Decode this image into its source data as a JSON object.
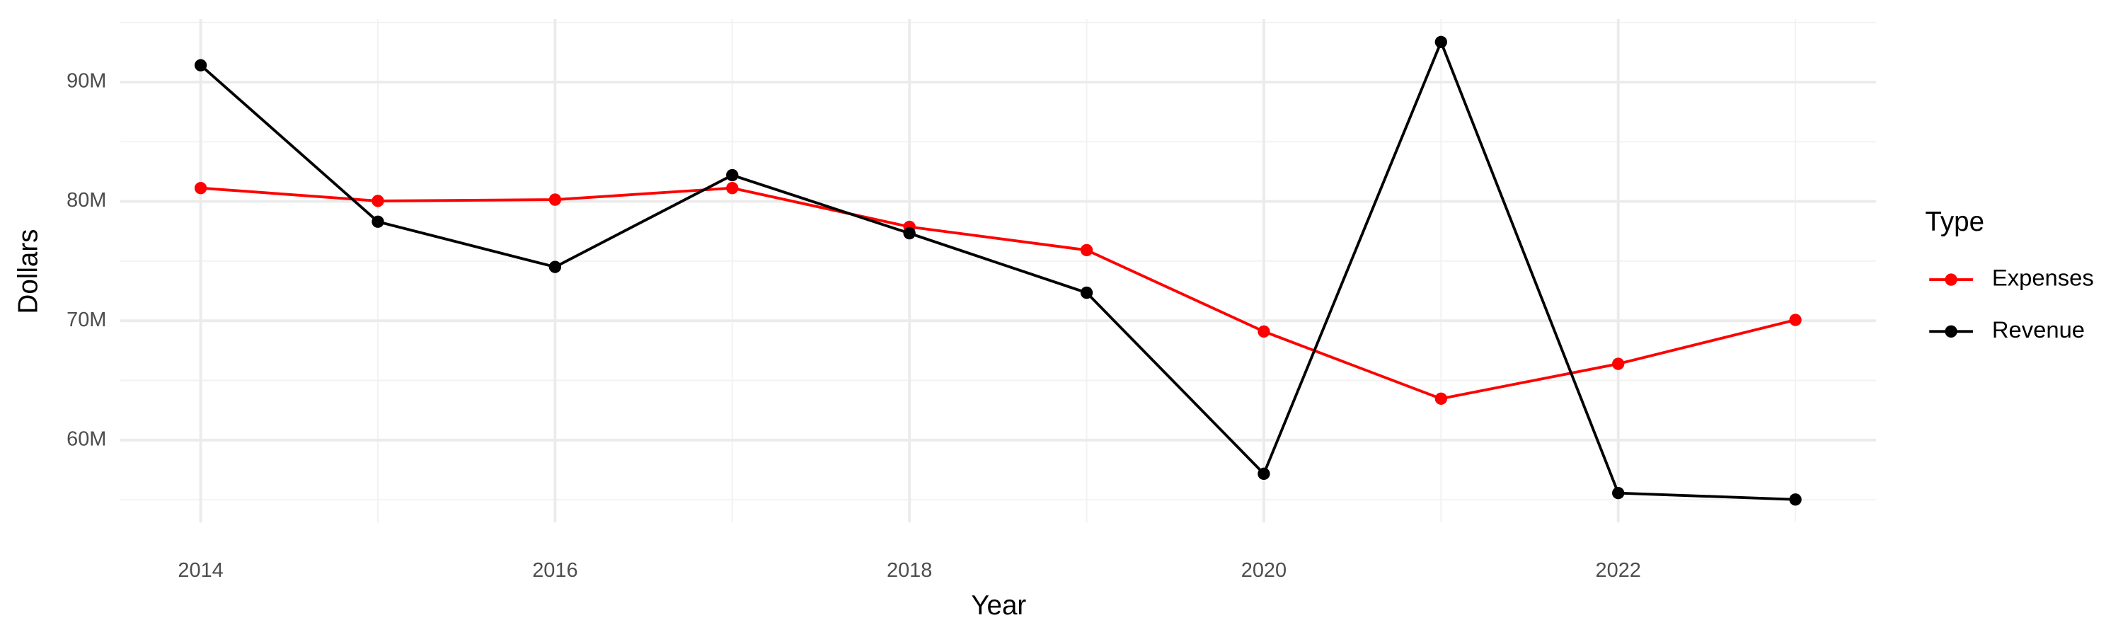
{
  "chart_data": {
    "type": "line",
    "x_label": "Year",
    "y_label": "Dollars",
    "legend_title": "Type",
    "x": [
      2014,
      2015,
      2016,
      2017,
      2018,
      2019,
      2020,
      2021,
      2022,
      2023
    ],
    "series": [
      {
        "name": "Expenses",
        "color": "#ff0000",
        "values": [
          81120000,
          80040000,
          80150000,
          81120000,
          77870000,
          75920000,
          69100000,
          63470000,
          66390000,
          70070000
        ]
      },
      {
        "name": "Revenue",
        "color": "#000000",
        "values": [
          91410000,
          78300000,
          74510000,
          82200000,
          77330000,
          72350000,
          57180000,
          93360000,
          55560000,
          55020000
        ]
      }
    ],
    "xlim": [
      2013.545,
      2023.455
    ],
    "xticks": [
      2014,
      2016,
      2018,
      2020,
      2022
    ],
    "ylim": [
      53100000,
      95280000
    ],
    "yticks": [
      {
        "value": 60000000,
        "label": "60M"
      },
      {
        "value": 70000000,
        "label": "70M"
      },
      {
        "value": 80000000,
        "label": "80M"
      },
      {
        "value": 90000000,
        "label": "90M"
      }
    ],
    "grid": true,
    "legend_position": "right"
  }
}
